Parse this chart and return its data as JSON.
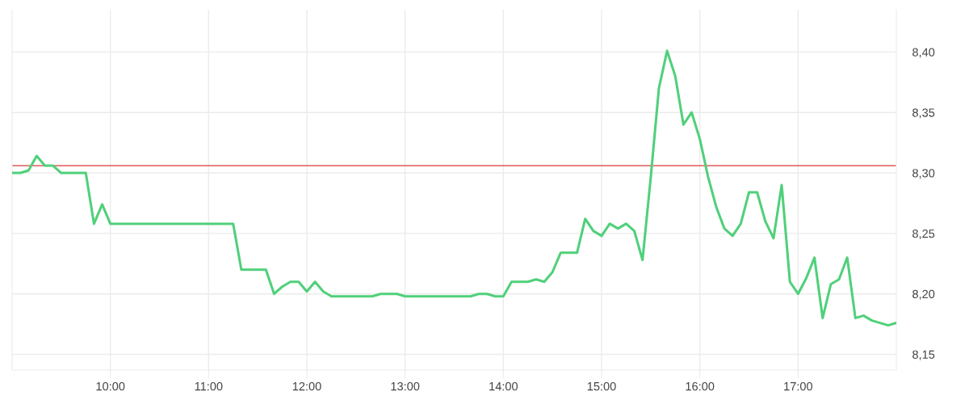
{
  "chart_data": {
    "type": "line",
    "x": [
      9.0,
      9.0833,
      9.1667,
      9.25,
      9.3333,
      9.4167,
      9.5,
      9.5833,
      9.6667,
      9.75,
      9.8333,
      9.9167,
      10.0,
      10.0833,
      10.1667,
      10.25,
      10.3333,
      10.4167,
      10.5,
      10.5833,
      10.6667,
      10.75,
      10.8333,
      10.9167,
      11.0,
      11.0833,
      11.1667,
      11.25,
      11.3333,
      11.4167,
      11.5,
      11.5833,
      11.6667,
      11.75,
      11.8333,
      11.9167,
      12.0,
      12.0833,
      12.1667,
      12.25,
      12.3333,
      12.4167,
      12.5,
      12.5833,
      12.6667,
      12.75,
      12.8333,
      12.9167,
      13.0,
      13.0833,
      13.1667,
      13.25,
      13.3333,
      13.4167,
      13.5,
      13.5833,
      13.6667,
      13.75,
      13.8333,
      13.9167,
      14.0,
      14.0833,
      14.1667,
      14.25,
      14.3333,
      14.4167,
      14.5,
      14.5833,
      14.6667,
      14.75,
      14.8333,
      14.9167,
      15.0,
      15.0833,
      15.1667,
      15.25,
      15.3333,
      15.4167,
      15.5,
      15.5833,
      15.6667,
      15.75,
      15.8333,
      15.9167,
      16.0,
      16.0833,
      16.1667,
      16.25,
      16.3333,
      16.4167,
      16.5,
      16.5833,
      16.6667,
      16.75,
      16.8333,
      16.9167,
      17.0,
      17.0833,
      17.1667,
      17.25,
      17.3333,
      17.4167,
      17.5,
      17.5833,
      17.6667,
      17.75,
      17.8333,
      17.9167,
      18.0
    ],
    "series": [
      {
        "color": "#50d07a",
        "values": [
          8.3,
          8.3,
          8.302,
          8.314,
          8.306,
          8.306,
          8.3,
          8.3,
          8.3,
          8.3,
          8.258,
          8.274,
          8.258,
          8.258,
          8.258,
          8.258,
          8.258,
          8.258,
          8.258,
          8.258,
          8.258,
          8.258,
          8.258,
          8.258,
          8.258,
          8.258,
          8.258,
          8.258,
          8.22,
          8.22,
          8.22,
          8.22,
          8.2,
          8.206,
          8.21,
          8.21,
          8.202,
          8.21,
          8.202,
          8.198,
          8.198,
          8.198,
          8.198,
          8.198,
          8.198,
          8.2,
          8.2,
          8.2,
          8.198,
          8.198,
          8.198,
          8.198,
          8.198,
          8.198,
          8.198,
          8.198,
          8.198,
          8.2,
          8.2,
          8.198,
          8.198,
          8.21,
          8.21,
          8.21,
          8.212,
          8.21,
          8.218,
          8.234,
          8.234,
          8.234,
          8.262,
          8.252,
          8.248,
          8.258,
          8.254,
          8.258,
          8.252,
          8.228,
          8.296,
          8.37,
          8.401,
          8.38,
          8.34,
          8.35,
          8.328,
          8.297,
          8.272,
          8.254,
          8.248,
          8.258,
          8.284,
          8.284,
          8.26,
          8.246,
          8.29,
          8.21,
          8.2,
          8.213,
          8.23,
          8.18,
          8.208,
          8.212,
          8.23,
          8.18,
          8.182,
          8.178,
          8.176,
          8.174,
          8.176
        ]
      }
    ],
    "xlim": [
      9,
      18
    ],
    "xticks": [
      {
        "value": 10,
        "label": "10:00"
      },
      {
        "value": 11,
        "label": "11:00"
      },
      {
        "value": 12,
        "label": "12:00"
      },
      {
        "value": 13,
        "label": "13:00"
      },
      {
        "value": 14,
        "label": "14:00"
      },
      {
        "value": 15,
        "label": "15:00"
      },
      {
        "value": 16,
        "label": "16:00"
      },
      {
        "value": 17,
        "label": "17:00"
      }
    ],
    "ylim": [
      8.137,
      8.435
    ],
    "yticks": [
      {
        "value": 8.15,
        "label": "8,15"
      },
      {
        "value": 8.2,
        "label": "8,20"
      },
      {
        "value": 8.25,
        "label": "8,25"
      },
      {
        "value": 8.3,
        "label": "8,30"
      },
      {
        "value": 8.35,
        "label": "8,35"
      },
      {
        "value": 8.4,
        "label": "8,40"
      }
    ],
    "ref_lines": [
      {
        "axis": "y",
        "value": 8.306,
        "color": "#e05a5a"
      }
    ],
    "grid": true,
    "marker": "none",
    "line_style": "solid"
  }
}
